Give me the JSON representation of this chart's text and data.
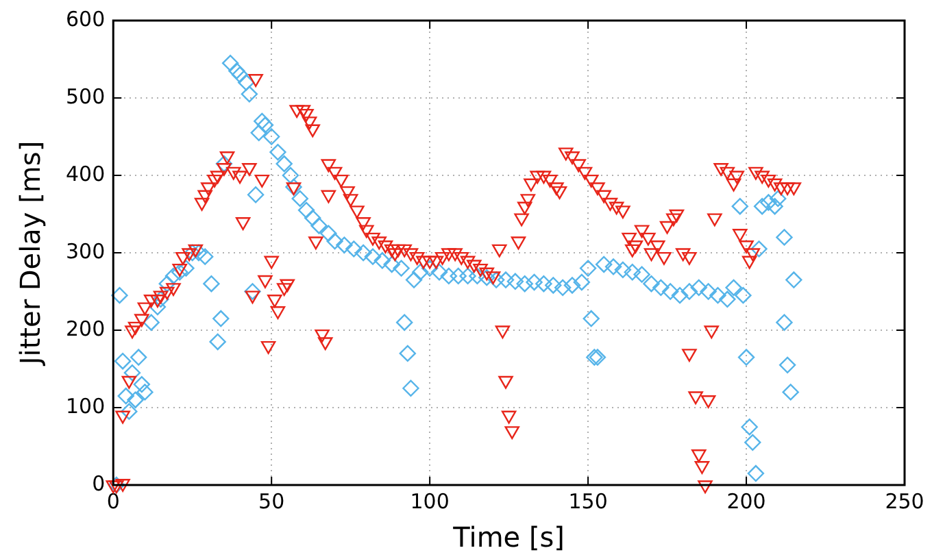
{
  "chart_data": {
    "type": "scatter",
    "xlabel": "Time [s]",
    "ylabel": "Jitter Delay [ms]",
    "xlim": [
      0,
      250
    ],
    "xticks": [
      0,
      50,
      100,
      150,
      200,
      250
    ],
    "ylim": [
      0,
      600
    ],
    "yticks": [
      0,
      100,
      200,
      300,
      400,
      500,
      600
    ],
    "grid": true,
    "legend": false,
    "series": [
      {
        "color": "#e8251a",
        "marker": "triangle",
        "x": [
          0,
          1,
          3,
          3,
          5,
          6,
          7,
          9,
          10,
          12,
          14,
          15,
          17,
          19,
          21,
          22,
          24,
          26,
          28,
          29,
          30,
          32,
          33,
          35,
          36,
          38,
          40,
          41,
          43,
          44,
          45,
          47,
          48,
          49,
          50,
          51,
          52,
          54,
          55,
          57,
          58,
          60,
          61,
          62,
          63,
          64,
          66,
          67,
          68,
          68,
          70,
          72,
          74,
          75,
          77,
          79,
          80,
          82,
          84,
          86,
          88,
          89,
          90,
          92,
          94,
          96,
          98,
          100,
          102,
          104,
          106,
          108,
          110,
          112,
          114,
          116,
          118,
          120,
          122,
          123,
          124,
          125,
          126,
          128,
          129,
          130,
          131,
          132,
          134,
          136,
          138,
          140,
          141,
          143,
          145,
          147,
          149,
          151,
          153,
          155,
          157,
          159,
          161,
          163,
          164,
          165,
          167,
          169,
          170,
          172,
          174,
          175,
          177,
          178,
          180,
          182,
          182,
          184,
          185,
          186,
          187,
          188,
          189,
          190,
          192,
          194,
          196,
          197,
          198,
          200,
          201,
          202,
          203,
          205,
          207,
          209,
          211,
          213,
          215
        ],
        "values": [
          0,
          0,
          2,
          90,
          135,
          200,
          205,
          215,
          230,
          240,
          240,
          245,
          250,
          255,
          280,
          295,
          300,
          305,
          365,
          375,
          385,
          395,
          400,
          410,
          425,
          405,
          400,
          340,
          410,
          245,
          525,
          395,
          265,
          180,
          290,
          240,
          225,
          255,
          260,
          385,
          485,
          485,
          480,
          470,
          460,
          315,
          195,
          185,
          375,
          415,
          405,
          395,
          380,
          370,
          355,
          340,
          330,
          320,
          315,
          310,
          305,
          300,
          305,
          305,
          300,
          295,
          290,
          290,
          290,
          295,
          300,
          300,
          295,
          290,
          285,
          280,
          275,
          270,
          305,
          200,
          135,
          90,
          70,
          315,
          345,
          360,
          370,
          390,
          400,
          400,
          395,
          385,
          380,
          430,
          425,
          415,
          405,
          395,
          385,
          375,
          365,
          360,
          355,
          320,
          305,
          310,
          330,
          320,
          300,
          310,
          295,
          335,
          345,
          350,
          300,
          295,
          170,
          115,
          40,
          25,
          0,
          110,
          200,
          345,
          410,
          405,
          390,
          400,
          325,
          310,
          290,
          300,
          405,
          400,
          395,
          390,
          385,
          385,
          385
        ]
      },
      {
        "color": "#56b4e9",
        "marker": "diamond",
        "x": [
          1,
          2,
          3,
          4,
          5,
          6,
          7,
          8,
          9,
          10,
          12,
          14,
          15,
          17,
          19,
          21,
          23,
          25,
          27,
          29,
          31,
          33,
          34,
          35,
          37,
          39,
          40,
          42,
          43,
          44,
          45,
          46,
          47,
          48,
          50,
          52,
          54,
          56,
          57,
          59,
          61,
          63,
          65,
          68,
          70,
          73,
          76,
          79,
          82,
          85,
          88,
          91,
          92,
          93,
          94,
          95,
          97,
          100,
          103,
          106,
          109,
          112,
          115,
          118,
          121,
          124,
          127,
          130,
          133,
          136,
          139,
          142,
          145,
          148,
          150,
          151,
          152,
          153,
          155,
          158,
          161,
          164,
          167,
          170,
          173,
          176,
          179,
          182,
          185,
          188,
          191,
          194,
          196,
          198,
          199,
          200,
          201,
          202,
          203,
          204,
          205,
          207,
          209,
          210,
          212,
          212,
          213,
          214,
          215
        ],
        "values": [
          0,
          245,
          160,
          115,
          95,
          145,
          110,
          165,
          130,
          120,
          210,
          230,
          240,
          260,
          270,
          275,
          280,
          300,
          300,
          295,
          260,
          185,
          215,
          415,
          545,
          535,
          530,
          520,
          505,
          250,
          375,
          455,
          470,
          465,
          450,
          430,
          415,
          400,
          385,
          370,
          355,
          345,
          335,
          325,
          315,
          310,
          305,
          300,
          295,
          290,
          285,
          280,
          210,
          170,
          125,
          265,
          275,
          280,
          275,
          270,
          270,
          270,
          270,
          268,
          265,
          265,
          263,
          260,
          262,
          260,
          258,
          255,
          258,
          262,
          280,
          215,
          165,
          165,
          285,
          282,
          278,
          275,
          272,
          260,
          255,
          250,
          245,
          250,
          255,
          250,
          245,
          240,
          255,
          360,
          245,
          165,
          75,
          55,
          15,
          305,
          360,
          365,
          360,
          370,
          320,
          210,
          155,
          120,
          265
        ]
      }
    ]
  }
}
